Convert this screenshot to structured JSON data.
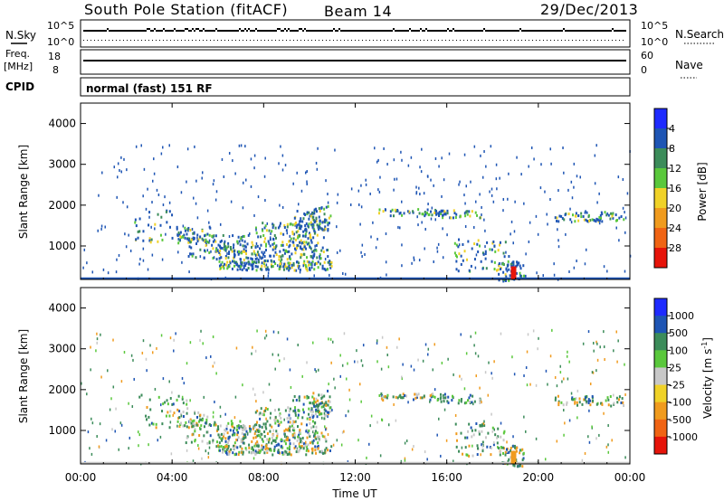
{
  "header": {
    "station": "South Pole Station (fitACF)",
    "beam": "Beam 14",
    "date": "29/Dec/2013"
  },
  "strip_panels": {
    "noise": {
      "left_label": "N.Sky",
      "right_label": "N.Search",
      "left_ticks": [
        "10^5",
        "10^0"
      ],
      "right_ticks": [
        "10^5",
        "10^0"
      ]
    },
    "freq": {
      "left_label_line1": "Freq.",
      "left_label_line2": "[MHz]",
      "right_label": "Nave",
      "left_ticks": [
        "18",
        "8"
      ],
      "right_ticks": [
        "60",
        "0"
      ]
    },
    "cpid": {
      "label": "CPID",
      "program": "normal (fast) 151 RF"
    }
  },
  "chart_data": [
    {
      "type": "heatmap",
      "name": "power",
      "ylabel": "Slant Range [km]",
      "xlabel": "",
      "x_ticks": [
        "00:00",
        "04:00",
        "08:00",
        "12:00",
        "16:00",
        "20:00",
        "00:00"
      ],
      "x_range_hours": [
        0,
        24
      ],
      "y_ticks": [
        "1000",
        "2000",
        "3000",
        "4000"
      ],
      "y_range_km": [
        180,
        4500
      ],
      "colorbar": {
        "label": "Power [dB]",
        "ticks": [
          "4",
          "8",
          "12",
          "16",
          "20",
          "24",
          "28"
        ],
        "colors": [
          "#1e2bff",
          "#1e55b4",
          "#3c8c5a",
          "#5ac83c",
          "#f0d228",
          "#f09b1e",
          "#f06414",
          "#e6140a"
        ]
      }
    },
    {
      "type": "heatmap",
      "name": "velocity",
      "ylabel": "Slant Range [km]",
      "xlabel": "Time UT",
      "x_ticks": [
        "00:00",
        "04:00",
        "08:00",
        "12:00",
        "16:00",
        "20:00",
        "00:00"
      ],
      "x_range_hours": [
        0,
        24
      ],
      "y_ticks": [
        "1000",
        "2000",
        "3000",
        "4000"
      ],
      "y_range_km": [
        180,
        4500
      ],
      "colorbar": {
        "label": "Velocity [m s",
        "label_sup": "-1",
        "label_end": "]",
        "ticks": [
          "1000",
          "500",
          "100",
          "25",
          "-25",
          "-100",
          "-500",
          "-1000"
        ],
        "colors": [
          "#1e2bff",
          "#1e55b4",
          "#3c8c5a",
          "#5ac83c",
          "#c8c8c8",
          "#f0d228",
          "#f09b1e",
          "#f06414",
          "#e6140a"
        ]
      }
    }
  ]
}
